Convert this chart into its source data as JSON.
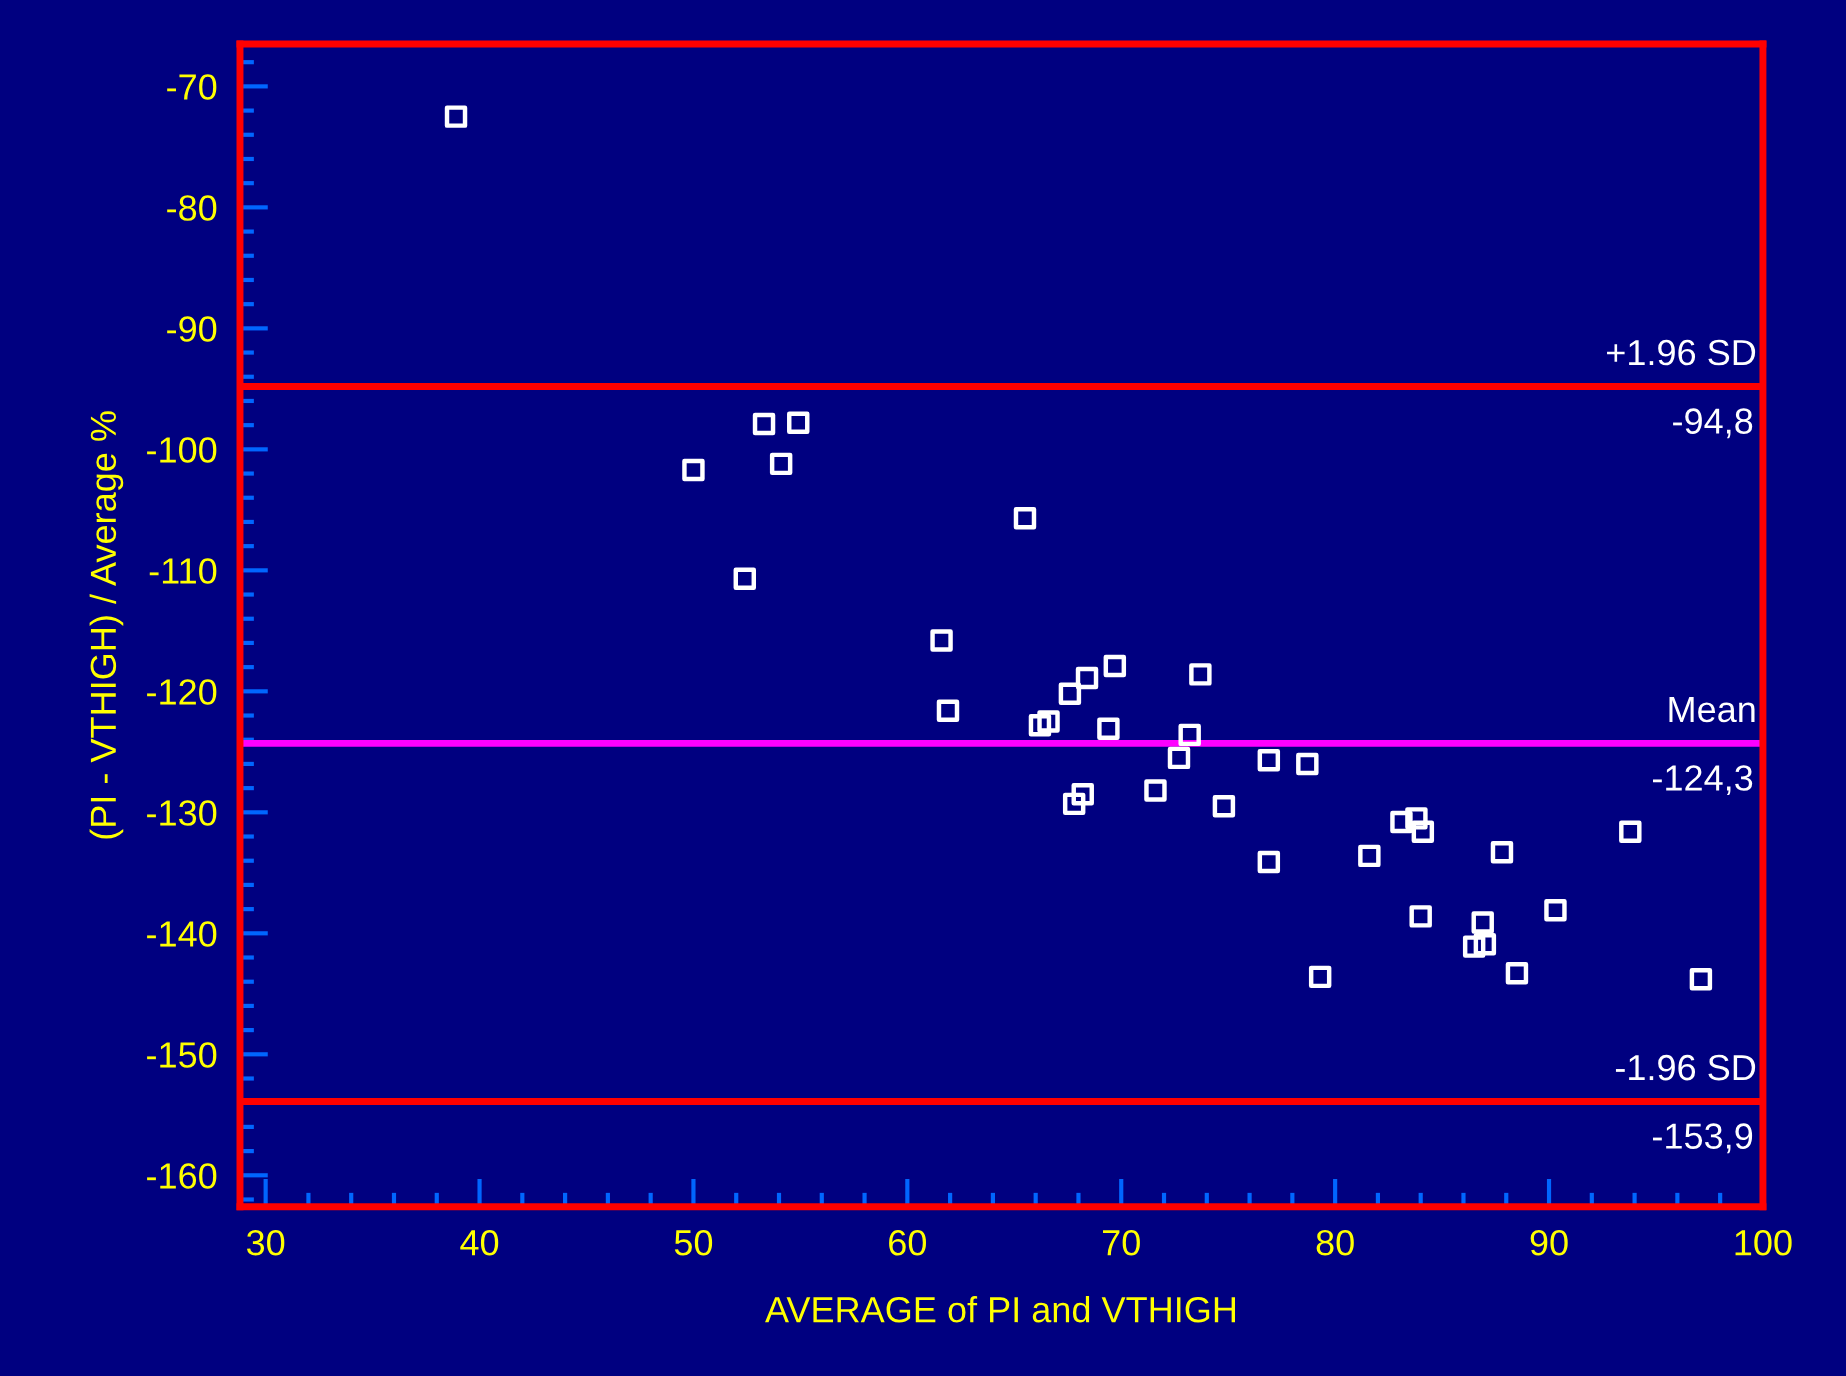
{
  "chart_data": {
    "type": "scatter",
    "xlabel": "AVERAGE of PI and VTHIGH",
    "ylabel": "(PI - VTHIGH) / Average %",
    "x": [
      38.9,
      50.0,
      53.3,
      54.9,
      54.1,
      52.4,
      65.5,
      61.6,
      61.9,
      66.2,
      66.6,
      67.6,
      68.4,
      69.7,
      69.4,
      73.7,
      73.2,
      72.7,
      76.9,
      78.7,
      67.8,
      68.2,
      71.6,
      74.8,
      76.9,
      81.6,
      83.1,
      83.8,
      84.1,
      87.8,
      93.8,
      84.0,
      86.9,
      86.5,
      87.0,
      90.3,
      79.3,
      88.5,
      97.1
    ],
    "series": [
      {
        "color": "#ffffff",
        "values": [
          -72.5,
          -101.7,
          -97.9,
          -97.8,
          -101.2,
          -110.7,
          -105.7,
          -115.8,
          -121.6,
          -122.8,
          -122.5,
          -120.2,
          -118.9,
          -117.9,
          -123.1,
          -118.6,
          -123.6,
          -125.5,
          -125.7,
          -126.0,
          -129.3,
          -128.5,
          -128.2,
          -129.5,
          -134.1,
          -133.6,
          -130.8,
          -130.5,
          -131.6,
          -133.3,
          -131.6,
          -138.6,
          -139.1,
          -141.1,
          -140.9,
          -138.1,
          -143.6,
          -143.3,
          -143.8
        ]
      }
    ],
    "marker": "square",
    "xlim": [
      28.8,
      100
    ],
    "ylim": [
      -162.6,
      -66.5
    ],
    "xticks": [
      30,
      40,
      50,
      60,
      70,
      80,
      90,
      100
    ],
    "yticks": [
      -70,
      -80,
      -90,
      -100,
      -110,
      -120,
      -130,
      -140,
      -150,
      -160
    ],
    "ref_lines": [
      {
        "axis": "y",
        "value": -94.8,
        "label": "+1.96 SD",
        "color": "#ff0000"
      },
      {
        "axis": "y",
        "value": -124.3,
        "label": "Mean",
        "color": "#ff00ff"
      },
      {
        "axis": "y",
        "value": -153.9,
        "label": "-1.96 SD",
        "color": "#ff0000"
      }
    ],
    "annotations": [
      "-94,8",
      "-124,3",
      "-153,9"
    ],
    "grid": false,
    "legend": false
  }
}
